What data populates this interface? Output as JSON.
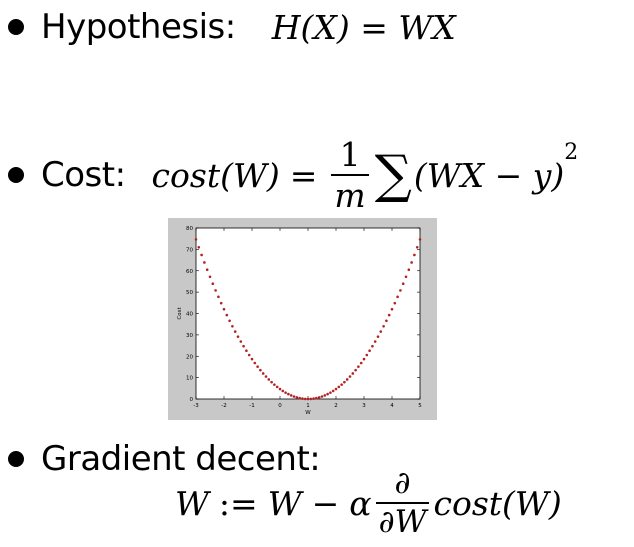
{
  "hypothesis": {
    "label": "Hypothesis:",
    "formula": {
      "lhs_func": "H",
      "lhs_arg": "(X)",
      "eq": "=",
      "rhs": "WX"
    }
  },
  "cost": {
    "label": "Cost:",
    "formula": {
      "lhs": "cost(W)",
      "eq": "=",
      "frac_num": "1",
      "frac_den": "m",
      "sum": "∑",
      "body": "(WX − y)",
      "power": "2"
    }
  },
  "gradient": {
    "label": "Gradient decent:",
    "formula": {
      "lhs": "W",
      "assign": ":=",
      "w": "W",
      "minus": "−",
      "alpha": "α",
      "frac_num": "∂",
      "frac_den": "∂W",
      "tail": "cost(W)"
    }
  },
  "chart_data": {
    "type": "scatter",
    "xlabel": "W",
    "ylabel": "Cost",
    "xlim": [
      -3,
      5
    ],
    "ylim": [
      0,
      80
    ],
    "xticks": [
      "-3",
      "-2",
      "-1",
      "0",
      "1",
      "2",
      "3",
      "4",
      "5"
    ],
    "yticks": [
      "0",
      "10",
      "20",
      "30",
      "40",
      "50",
      "60",
      "70",
      "80"
    ],
    "x_start": -3,
    "x_step": 0.1,
    "x_count": 81,
    "y_formula": "(14/3) * (W - 1)^2",
    "point_color": "#b22222",
    "frame_color": "#c8c8c8"
  }
}
